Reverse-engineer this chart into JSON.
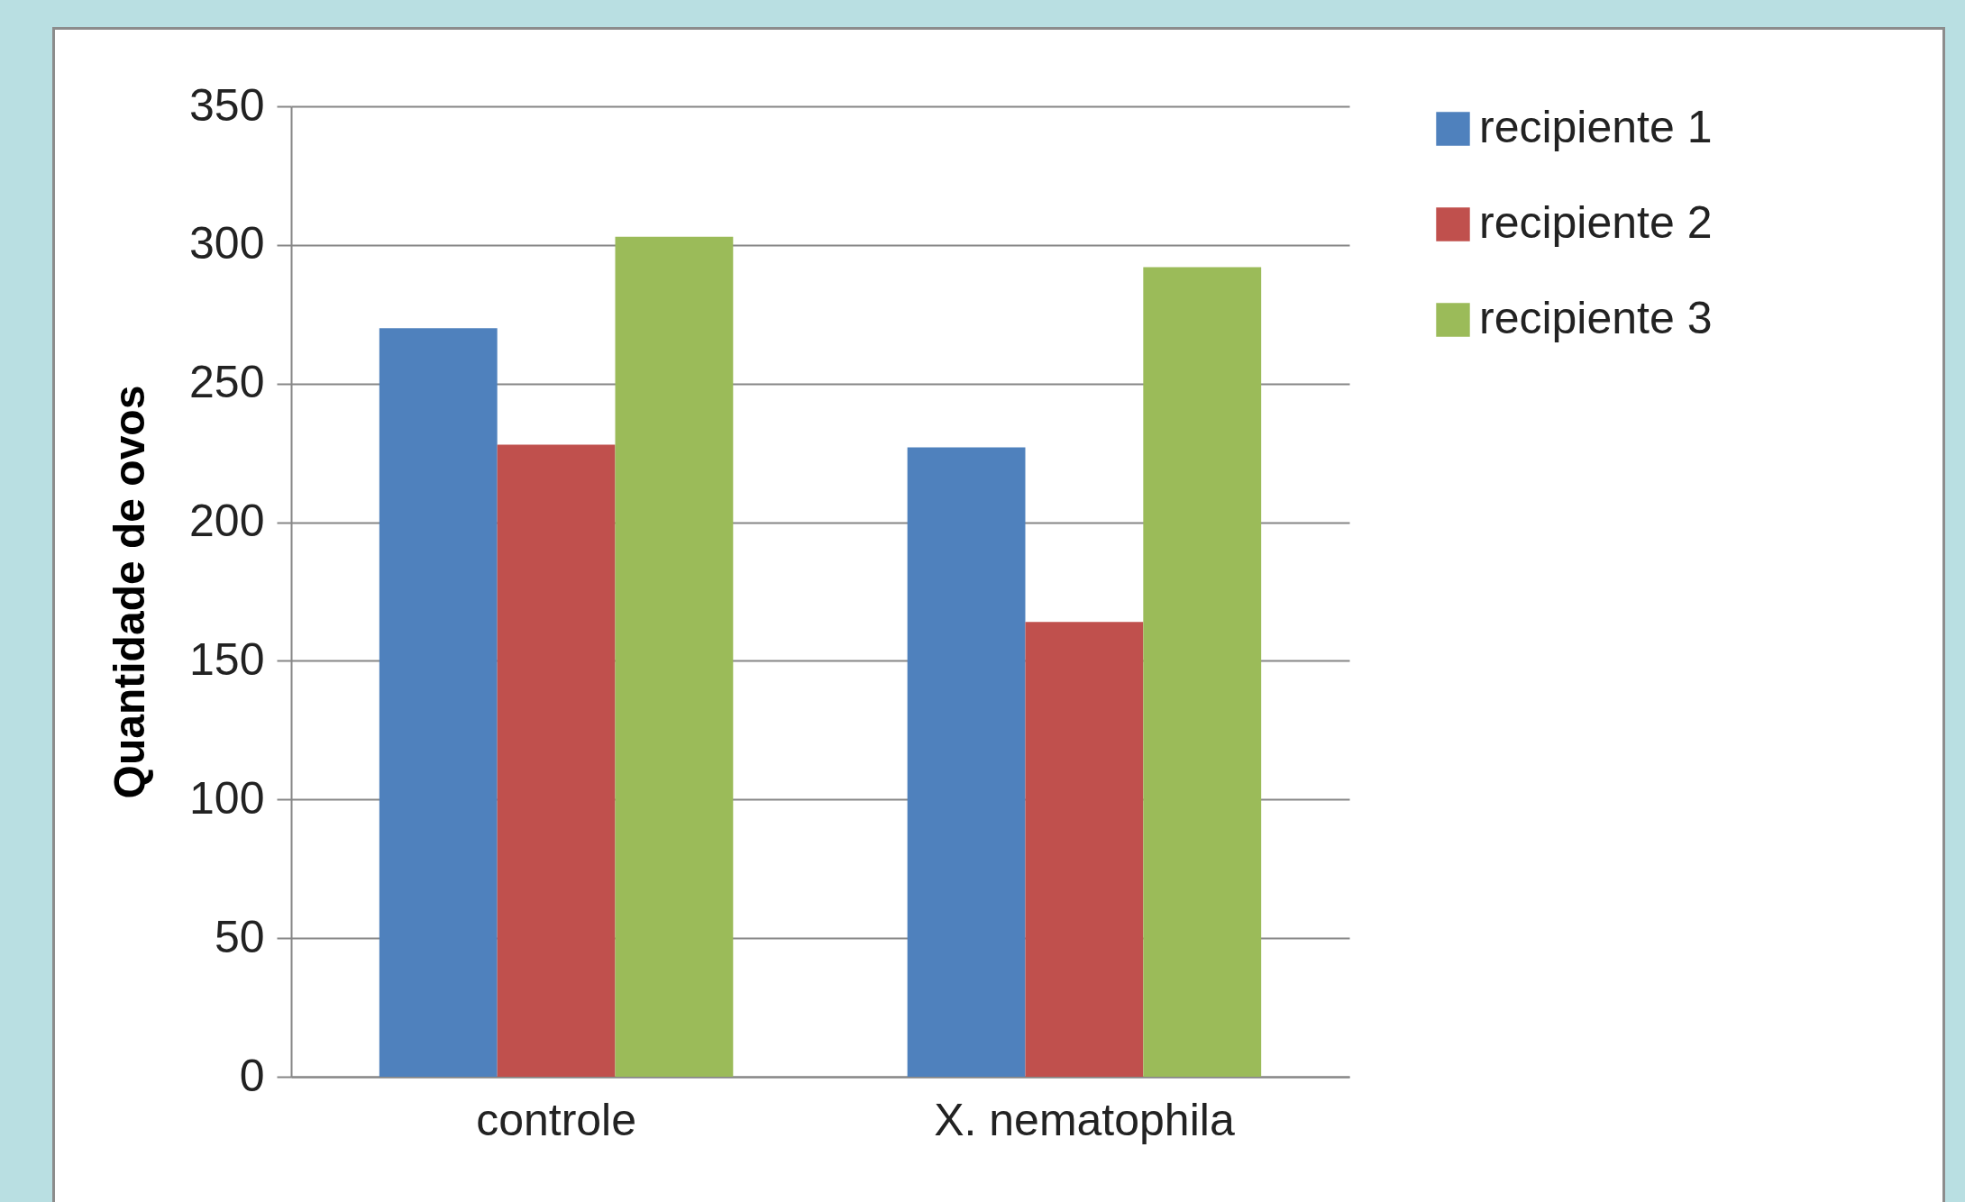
{
  "chart_data": {
    "type": "bar",
    "ylabel": "Quantidade de ovos",
    "categories": [
      "controle",
      "X. nematophila"
    ],
    "series": [
      {
        "name": "recipiente 1",
        "color": "#4f81bd",
        "values": [
          270,
          227
        ]
      },
      {
        "name": "recipiente 2",
        "color": "#c0504d",
        "values": [
          228,
          164
        ]
      },
      {
        "name": "recipiente 3",
        "color": "#9bbb59",
        "values": [
          303,
          292
        ]
      }
    ],
    "ylim": [
      0,
      350
    ],
    "yticks": [
      0,
      50,
      100,
      150,
      200,
      250,
      300,
      350
    ],
    "grid": "y",
    "legend": "right"
  }
}
